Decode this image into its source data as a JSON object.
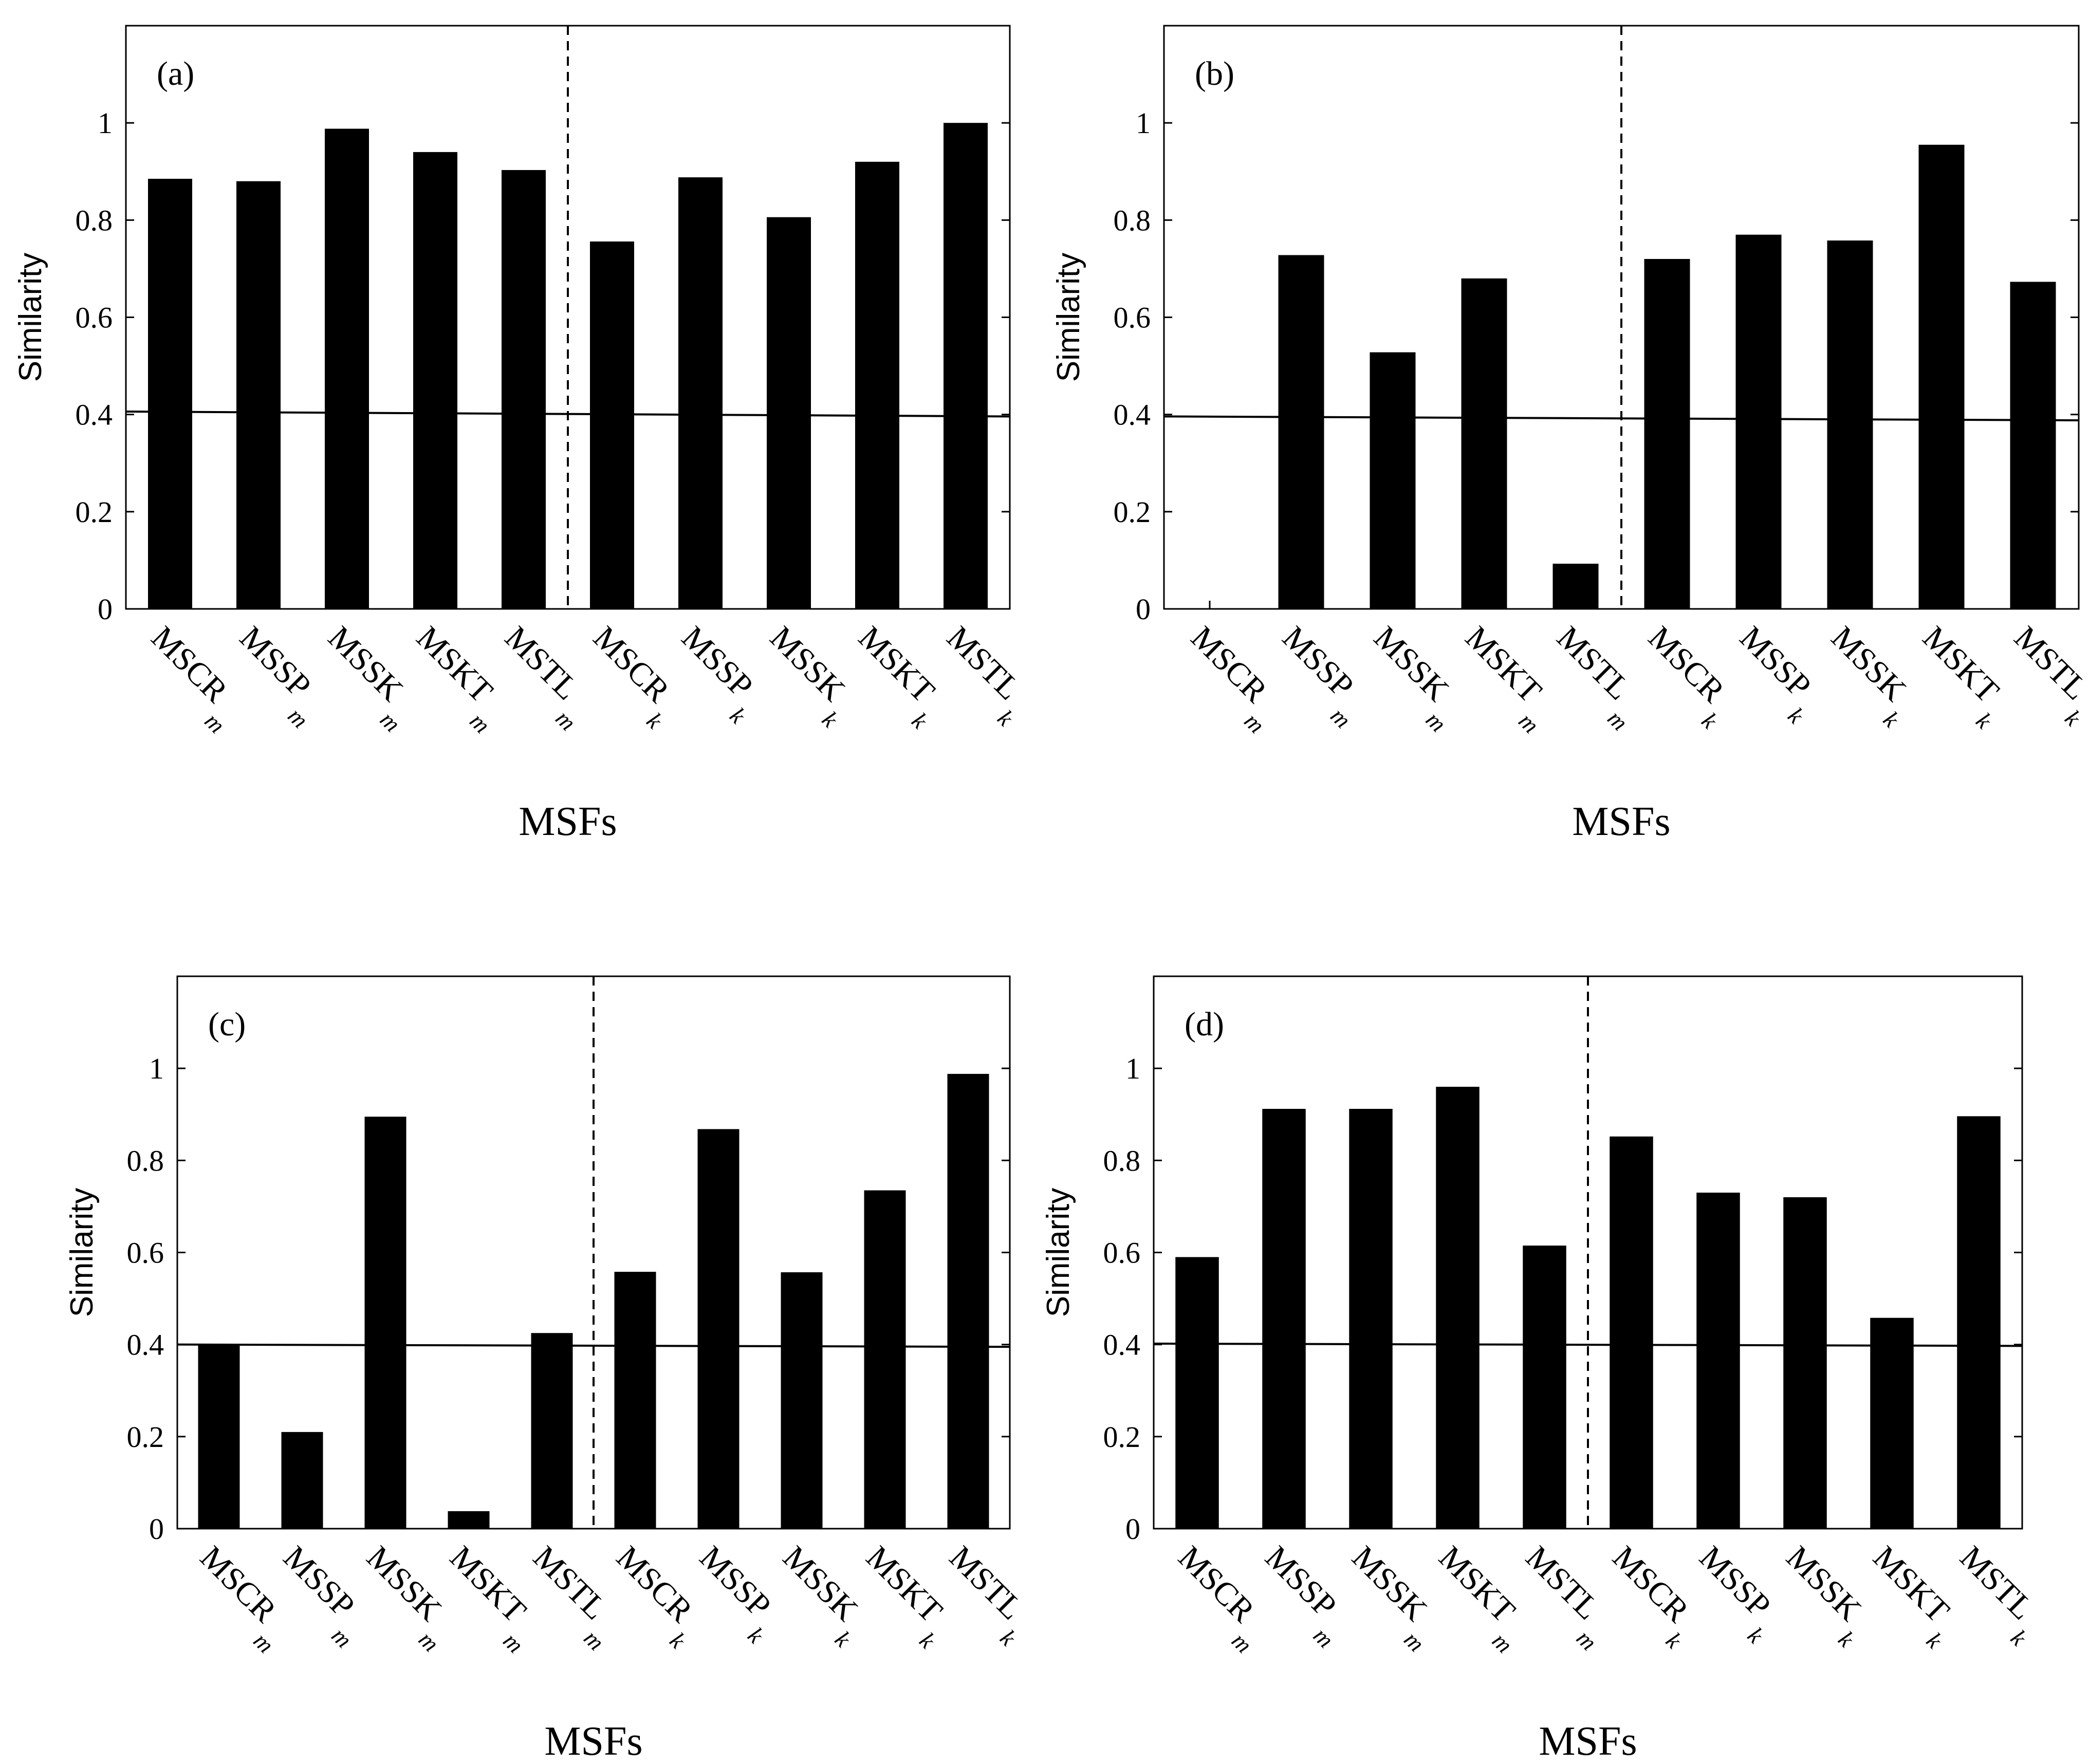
{
  "chart_data": [
    {
      "type": "bar",
      "panel_label": "(a)",
      "categories": [
        {
          "base": "MSCR",
          "sub": "m"
        },
        {
          "base": "MSSP",
          "sub": "m"
        },
        {
          "base": "MSSK",
          "sub": "m"
        },
        {
          "base": "MSKT",
          "sub": "m"
        },
        {
          "base": "MSTL",
          "sub": "m"
        },
        {
          "base": "MSCR",
          "sub": "k"
        },
        {
          "base": "MSSP",
          "sub": "k"
        },
        {
          "base": "MSSK",
          "sub": "k"
        },
        {
          "base": "MSKT",
          "sub": "k"
        },
        {
          "base": "MSTL",
          "sub": "k"
        }
      ],
      "values": [
        0.885,
        0.88,
        0.988,
        0.94,
        0.903,
        0.756,
        0.888,
        0.806,
        0.92,
        1.0
      ],
      "reference_line": [
        0.406,
        0.396
      ],
      "divider_after_index": 4,
      "ylabel": "Similarity",
      "xlabel": "MSFs",
      "ylim": [
        0,
        1.2
      ],
      "yticks": [
        0,
        0.2,
        0.4,
        0.6,
        0.8,
        1
      ],
      "ytick_labels": [
        "0",
        "0.2",
        "0.4",
        "0.6",
        "0.8",
        "1"
      ]
    },
    {
      "type": "bar",
      "panel_label": "(b)",
      "categories": [
        {
          "base": "MSCR",
          "sub": "m"
        },
        {
          "base": "MSSP",
          "sub": "m"
        },
        {
          "base": "MSSK",
          "sub": "m"
        },
        {
          "base": "MSKT",
          "sub": "m"
        },
        {
          "base": "MSTL",
          "sub": "m"
        },
        {
          "base": "MSCR",
          "sub": "k"
        },
        {
          "base": "MSSP",
          "sub": "k"
        },
        {
          "base": "MSSK",
          "sub": "k"
        },
        {
          "base": "MSKT",
          "sub": "k"
        },
        {
          "base": "MSTL",
          "sub": "k"
        }
      ],
      "values": [
        0.0,
        0.728,
        0.528,
        0.68,
        0.093,
        0.72,
        0.77,
        0.758,
        0.955,
        0.673
      ],
      "reference_line": [
        0.396,
        0.388
      ],
      "divider_after_index": 4,
      "ylabel": "Similarity",
      "xlabel": "MSFs",
      "ylim": [
        0,
        1.2
      ],
      "yticks": [
        0,
        0.2,
        0.4,
        0.6,
        0.8,
        1
      ],
      "ytick_labels": [
        "0",
        "0.2",
        "0.4",
        "0.6",
        "0.8",
        "1"
      ]
    },
    {
      "type": "bar",
      "panel_label": "(c)",
      "categories": [
        {
          "base": "MSCR",
          "sub": "m"
        },
        {
          "base": "MSSP",
          "sub": "m"
        },
        {
          "base": "MSSK",
          "sub": "m"
        },
        {
          "base": "MSKT",
          "sub": "m"
        },
        {
          "base": "MSTL",
          "sub": "m"
        },
        {
          "base": "MSCR",
          "sub": "k"
        },
        {
          "base": "MSSP",
          "sub": "k"
        },
        {
          "base": "MSSK",
          "sub": "k"
        },
        {
          "base": "MSKT",
          "sub": "k"
        },
        {
          "base": "MSTL",
          "sub": "k"
        }
      ],
      "values": [
        0.4,
        0.21,
        0.895,
        0.038,
        0.425,
        0.558,
        0.868,
        0.557,
        0.735,
        0.988
      ],
      "reference_line": [
        0.4,
        0.395
      ],
      "divider_after_index": 4,
      "ylabel": "Similarity",
      "xlabel": "MSFs",
      "ylim": [
        0,
        1.2
      ],
      "yticks": [
        0,
        0.2,
        0.4,
        0.6,
        0.8,
        1
      ],
      "ytick_labels": [
        "0",
        "0.2",
        "0.4",
        "0.6",
        "0.8",
        "1"
      ]
    },
    {
      "type": "bar",
      "panel_label": "(d)",
      "categories": [
        {
          "base": "MSCR",
          "sub": "m"
        },
        {
          "base": "MSSP",
          "sub": "m"
        },
        {
          "base": "MSSK",
          "sub": "m"
        },
        {
          "base": "MSKT",
          "sub": "m"
        },
        {
          "base": "MSTL",
          "sub": "m"
        },
        {
          "base": "MSCR",
          "sub": "k"
        },
        {
          "base": "MSSP",
          "sub": "k"
        },
        {
          "base": "MSSK",
          "sub": "k"
        },
        {
          "base": "MSKT",
          "sub": "k"
        },
        {
          "base": "MSTL",
          "sub": "k"
        }
      ],
      "values": [
        0.59,
        0.912,
        0.912,
        0.96,
        0.615,
        0.852,
        0.73,
        0.72,
        0.458,
        0.896
      ],
      "reference_line": [
        0.402,
        0.397
      ],
      "divider_after_index": 4,
      "ylabel": "Similarity",
      "xlabel": "MSFs",
      "ylim": [
        0,
        1.2
      ],
      "yticks": [
        0,
        0.2,
        0.4,
        0.6,
        0.8,
        1
      ],
      "ytick_labels": [
        "0",
        "0.2",
        "0.4",
        "0.6",
        "0.8",
        "1"
      ]
    }
  ]
}
